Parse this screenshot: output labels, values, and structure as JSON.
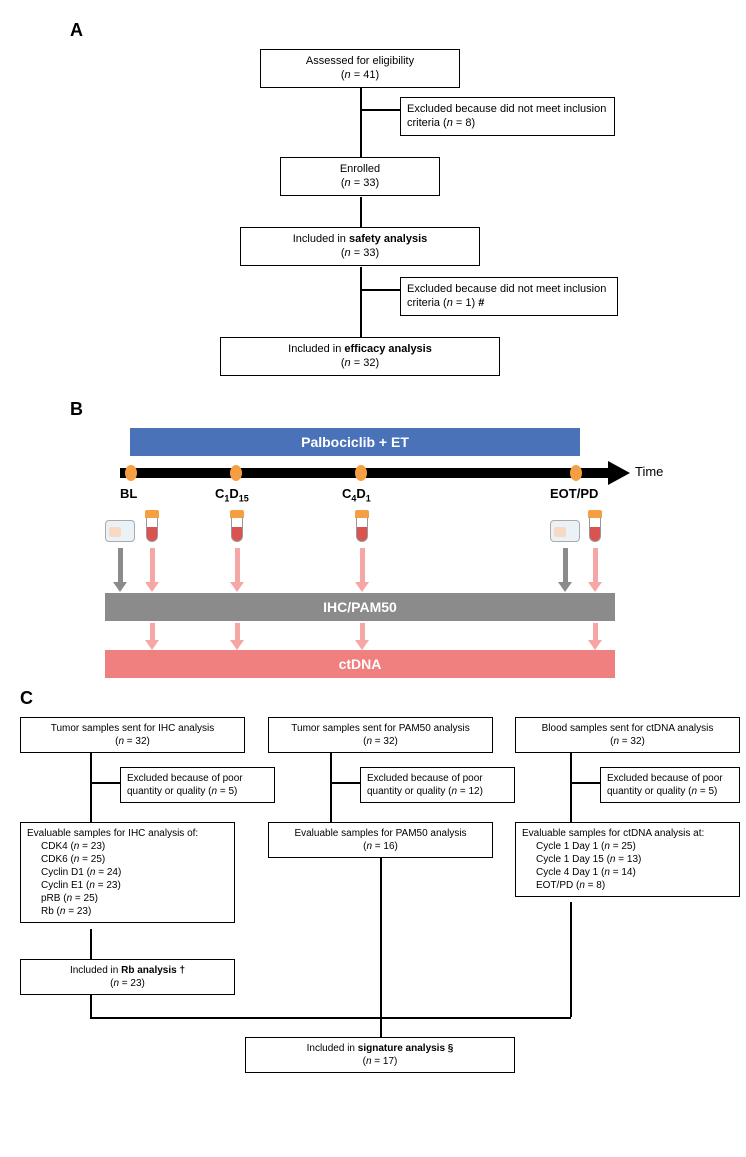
{
  "panelA": {
    "label": "A",
    "boxes": {
      "assessed": {
        "line1": "Assessed for eligibility",
        "n": 41
      },
      "excluded1": {
        "text": "Excluded because did not meet inclusion criteria (",
        "n": 8,
        "text2": ")"
      },
      "enrolled": {
        "line1": "Enrolled",
        "n": 33
      },
      "safety": {
        "pre": "Included in ",
        "bold": "safety analysis",
        "n": 33
      },
      "excluded2": {
        "text": "Excluded because did not meet inclusion criteria (",
        "n": 1,
        "text2": ") ",
        "sym": "#"
      },
      "efficacy": {
        "pre": "Included in ",
        "bold": "efficacy analysis",
        "n": 32
      }
    }
  },
  "panelB": {
    "label": "B",
    "colors": {
      "banner_blue": "#4a72b8",
      "banner_grey": "#8b8b8b",
      "banner_red": "#f08080",
      "timepoint": "#f59e42"
    },
    "treatment": "Palbociclib + ET",
    "timepoints": {
      "bl": "BL",
      "c1": "C",
      "c1_sub1": "1",
      "c1_mid": "D",
      "c1_sub2": "15",
      "c2": "C",
      "c2_sub1": "4",
      "c2_mid": "D",
      "c2_sub2": "1",
      "eot": "EOT/PD"
    },
    "time_label": "Time",
    "ihc_label": "IHC/PAM50",
    "ctdna_label": "ctDNA"
  },
  "panelC": {
    "label": "C",
    "col1": {
      "top": {
        "text": "Tumor samples sent for IHC analysis",
        "n": 32
      },
      "excl": {
        "text": "Excluded because of poor quantity or quality (",
        "n": 5,
        "text2": ")"
      },
      "eval_title": "Evaluable samples for IHC analysis of:",
      "eval_items": [
        {
          "name": "CDK4",
          "n": 23
        },
        {
          "name": "CDK6",
          "n": 25
        },
        {
          "name": "Cyclin D1",
          "n": 24
        },
        {
          "name": "Cyclin E1",
          "n": 23
        },
        {
          "name": "pRB",
          "n": 25
        },
        {
          "name": "Rb",
          "n": 23
        }
      ],
      "rb": {
        "pre": "Included in ",
        "bold": "Rb analysis",
        "sym": " †",
        "n": 23
      }
    },
    "col2": {
      "top": {
        "text": "Tumor samples sent for PAM50 analysis",
        "n": 32
      },
      "excl": {
        "text": "Excluded because of poor quantity or quality (",
        "n": 12,
        "text2": ")"
      },
      "eval": {
        "text": "Evaluable samples for PAM50 analysis",
        "n": 16
      }
    },
    "col3": {
      "top": {
        "text": "Blood samples sent for ctDNA analysis",
        "n": 32
      },
      "excl": {
        "text": "Excluded because of poor quantity or quality (",
        "n": 5,
        "text2": ")"
      },
      "eval_title": "Evaluable samples for ctDNA analysis at:",
      "eval_items": [
        {
          "name": "Cycle 1 Day 1",
          "n": 25
        },
        {
          "name": "Cycle 1 Day 15",
          "n": 13
        },
        {
          "name": "Cycle 4 Day 1",
          "n": 14
        },
        {
          "name": "EOT/PD",
          "n": 8
        }
      ]
    },
    "signature": {
      "pre": "Included in ",
      "bold": "signature analysis",
      "sym": " §",
      "n": 17
    }
  }
}
